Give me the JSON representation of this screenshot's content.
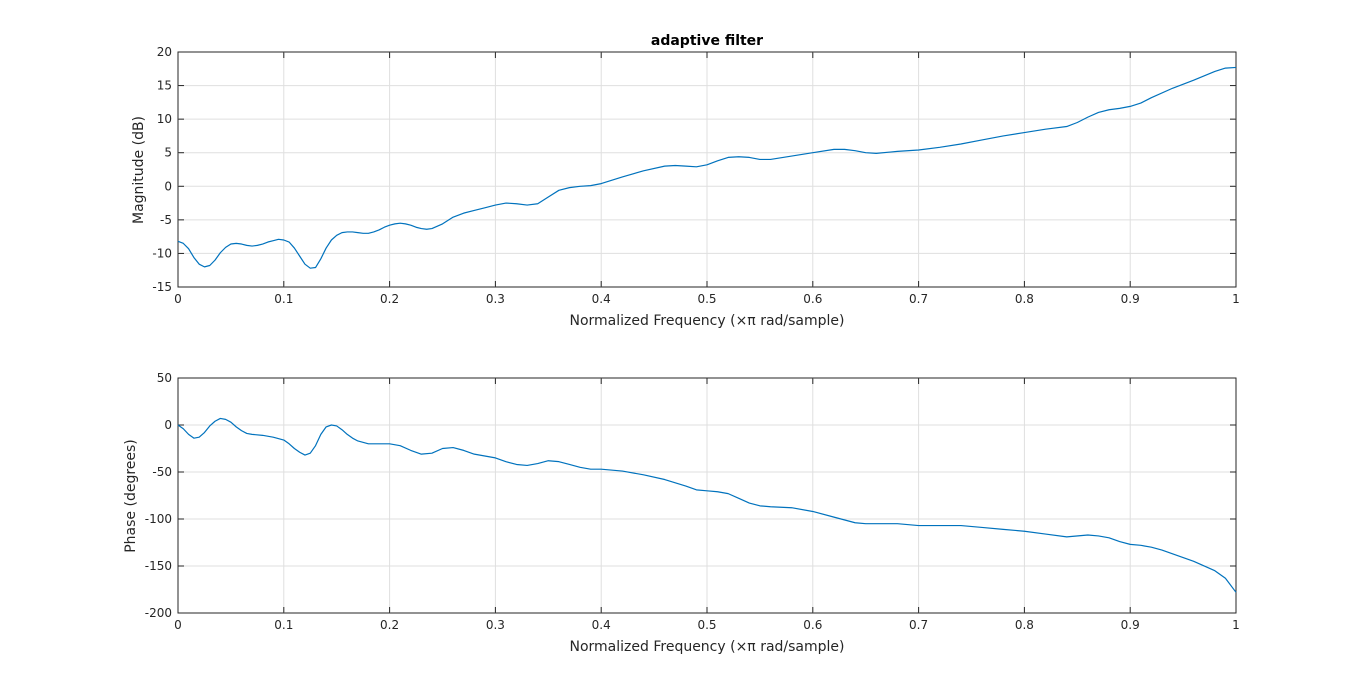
{
  "colors": {
    "series": "#0072bd"
  },
  "chart_data": [
    {
      "type": "line",
      "title": "adaptive filter",
      "xlabel": "Normalized Frequency  (×π rad/sample)",
      "ylabel": "Magnitude (dB)",
      "xlim": [
        0,
        1
      ],
      "ylim": [
        -15,
        20
      ],
      "grid": true,
      "xticks": [
        0,
        0.1,
        0.2,
        0.3,
        0.4,
        0.5,
        0.6,
        0.7,
        0.8,
        0.9,
        1
      ],
      "xtick_labels": [
        "0",
        "0.1",
        "0.2",
        "0.3",
        "0.4",
        "0.5",
        "0.6",
        "0.7",
        "0.8",
        "0.9",
        "1"
      ],
      "yticks": [
        -15,
        -10,
        -5,
        0,
        5,
        10,
        15,
        20
      ],
      "ytick_labels": [
        "-15",
        "-10",
        "-5",
        "0",
        "5",
        "10",
        "15",
        "20"
      ],
      "series": [
        {
          "x": [
            0,
            0.005,
            0.01,
            0.015,
            0.02,
            0.025,
            0.03,
            0.035,
            0.04,
            0.045,
            0.05,
            0.055,
            0.06,
            0.065,
            0.07,
            0.075,
            0.08,
            0.085,
            0.09,
            0.095,
            0.1,
            0.105,
            0.11,
            0.115,
            0.12,
            0.125,
            0.13,
            0.135,
            0.14,
            0.145,
            0.15,
            0.155,
            0.16,
            0.165,
            0.17,
            0.175,
            0.18,
            0.185,
            0.19,
            0.195,
            0.2,
            0.205,
            0.21,
            0.215,
            0.22,
            0.225,
            0.23,
            0.235,
            0.24,
            0.25,
            0.26,
            0.27,
            0.28,
            0.29,
            0.3,
            0.31,
            0.32,
            0.33,
            0.34,
            0.35,
            0.36,
            0.37,
            0.38,
            0.39,
            0.4,
            0.42,
            0.44,
            0.46,
            0.47,
            0.48,
            0.49,
            0.5,
            0.51,
            0.52,
            0.53,
            0.54,
            0.55,
            0.56,
            0.58,
            0.6,
            0.62,
            0.63,
            0.64,
            0.65,
            0.66,
            0.68,
            0.7,
            0.72,
            0.74,
            0.76,
            0.78,
            0.8,
            0.82,
            0.84,
            0.85,
            0.86,
            0.87,
            0.88,
            0.89,
            0.9,
            0.91,
            0.92,
            0.94,
            0.96,
            0.98,
            0.99,
            1.0
          ],
          "y": [
            -8.2,
            -8.5,
            -9.3,
            -10.6,
            -11.6,
            -12.0,
            -11.8,
            -11.0,
            -9.9,
            -9.1,
            -8.6,
            -8.5,
            -8.6,
            -8.8,
            -8.9,
            -8.8,
            -8.6,
            -8.3,
            -8.1,
            -7.9,
            -8.0,
            -8.3,
            -9.2,
            -10.4,
            -11.6,
            -12.2,
            -12.1,
            -10.8,
            -9.2,
            -8.0,
            -7.3,
            -6.9,
            -6.8,
            -6.8,
            -6.9,
            -7.0,
            -7.0,
            -6.8,
            -6.5,
            -6.1,
            -5.8,
            -5.6,
            -5.5,
            -5.6,
            -5.8,
            -6.1,
            -6.3,
            -6.4,
            -6.3,
            -5.6,
            -4.6,
            -4.0,
            -3.6,
            -3.2,
            -2.8,
            -2.5,
            -2.6,
            -2.8,
            -2.6,
            -1.6,
            -0.6,
            -0.2,
            0.0,
            0.1,
            0.4,
            1.4,
            2.3,
            3.0,
            3.1,
            3.0,
            2.9,
            3.2,
            3.8,
            4.3,
            4.4,
            4.3,
            4.0,
            4.0,
            4.5,
            5.0,
            5.5,
            5.5,
            5.3,
            5.0,
            4.9,
            5.2,
            5.4,
            5.8,
            6.3,
            6.9,
            7.5,
            8.0,
            8.5,
            8.9,
            9.5,
            10.3,
            11.0,
            11.4,
            11.6,
            11.9,
            12.4,
            13.2,
            14.6,
            15.8,
            17.1,
            17.6,
            17.7
          ]
        }
      ]
    },
    {
      "type": "line",
      "title": "",
      "xlabel": "Normalized Frequency  (×π rad/sample)",
      "ylabel": "Phase (degrees)",
      "xlim": [
        0,
        1
      ],
      "ylim": [
        -200,
        50
      ],
      "grid": true,
      "xticks": [
        0,
        0.1,
        0.2,
        0.3,
        0.4,
        0.5,
        0.6,
        0.7,
        0.8,
        0.9,
        1
      ],
      "xtick_labels": [
        "0",
        "0.1",
        "0.2",
        "0.3",
        "0.4",
        "0.5",
        "0.6",
        "0.7",
        "0.8",
        "0.9",
        "1"
      ],
      "yticks": [
        -200,
        -150,
        -100,
        -50,
        0,
        50
      ],
      "ytick_labels": [
        "-200",
        "-150",
        "-100",
        "-50",
        "0",
        "50"
      ],
      "series": [
        {
          "x": [
            0,
            0.005,
            0.01,
            0.015,
            0.02,
            0.025,
            0.03,
            0.035,
            0.04,
            0.045,
            0.05,
            0.055,
            0.06,
            0.065,
            0.07,
            0.08,
            0.09,
            0.1,
            0.105,
            0.11,
            0.115,
            0.12,
            0.125,
            0.13,
            0.135,
            0.14,
            0.145,
            0.15,
            0.155,
            0.16,
            0.165,
            0.17,
            0.18,
            0.19,
            0.2,
            0.21,
            0.22,
            0.23,
            0.24,
            0.25,
            0.26,
            0.27,
            0.28,
            0.29,
            0.3,
            0.31,
            0.32,
            0.33,
            0.34,
            0.35,
            0.36,
            0.37,
            0.38,
            0.39,
            0.4,
            0.42,
            0.44,
            0.46,
            0.48,
            0.49,
            0.5,
            0.51,
            0.52,
            0.53,
            0.54,
            0.55,
            0.56,
            0.58,
            0.6,
            0.62,
            0.64,
            0.65,
            0.66,
            0.68,
            0.7,
            0.72,
            0.74,
            0.76,
            0.78,
            0.8,
            0.82,
            0.84,
            0.86,
            0.87,
            0.88,
            0.89,
            0.9,
            0.91,
            0.92,
            0.93,
            0.94,
            0.96,
            0.98,
            0.99,
            1.0
          ],
          "y": [
            0,
            -4,
            -10,
            -14,
            -13,
            -8,
            -1,
            4,
            7,
            6,
            3,
            -2,
            -6,
            -9,
            -10,
            -11,
            -13,
            -16,
            -20,
            -25,
            -29,
            -32,
            -30,
            -22,
            -10,
            -2,
            0,
            -1,
            -5,
            -10,
            -14,
            -17,
            -20,
            -20,
            -20,
            -22,
            -27,
            -31,
            -30,
            -25,
            -24,
            -27,
            -31,
            -33,
            -35,
            -39,
            -42,
            -43,
            -41,
            -38,
            -39,
            -42,
            -45,
            -47,
            -47,
            -49,
            -53,
            -58,
            -65,
            -69,
            -70,
            -71,
            -73,
            -78,
            -83,
            -86,
            -87,
            -88,
            -92,
            -98,
            -104,
            -105,
            -105,
            -105,
            -107,
            -107,
            -107,
            -109,
            -111,
            -113,
            -116,
            -119,
            -117,
            -118,
            -120,
            -124,
            -127,
            -128,
            -130,
            -133,
            -137,
            -145,
            -155,
            -163,
            -178
          ]
        }
      ]
    }
  ]
}
